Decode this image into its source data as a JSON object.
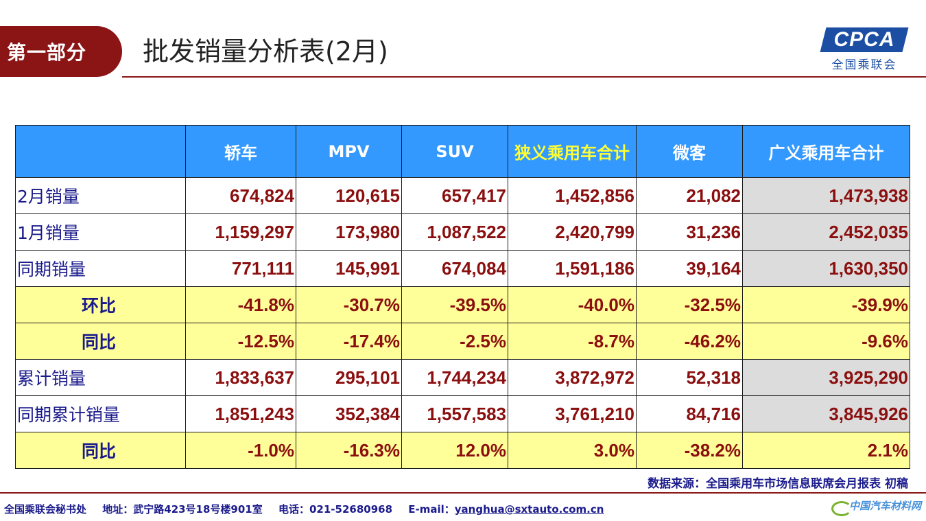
{
  "header": {
    "section_label": "第一部分",
    "title": "批发销量分析表(2月)",
    "logo_text": "CPCA",
    "logo_subtitle": "全国乘联会"
  },
  "table": {
    "columns": [
      "",
      "轿车",
      "MPV",
      "SUV",
      "狭义乘用车合计",
      "微客",
      "广义乘用车合计"
    ],
    "rows": [
      {
        "label": "2月销量",
        "values": [
          "674,824",
          "120,615",
          "657,417",
          "1,452,856",
          "21,082",
          "1,473,938"
        ]
      },
      {
        "label": "1月销量",
        "values": [
          "1,159,297",
          "173,980",
          "1,087,522",
          "2,420,799",
          "31,236",
          "2,452,035"
        ]
      },
      {
        "label": "同期销量",
        "values": [
          "771,111",
          "145,991",
          "674,084",
          "1,591,186",
          "39,164",
          "1,630,350"
        ]
      },
      {
        "label": "环比",
        "values": [
          "-41.8%",
          "-30.7%",
          "-39.5%",
          "-40.0%",
          "-32.5%",
          "-39.9%"
        ]
      },
      {
        "label": "同比",
        "values": [
          "-12.5%",
          "-17.4%",
          "-2.5%",
          "-8.7%",
          "-46.2%",
          "-9.6%"
        ]
      },
      {
        "label": "累计销量",
        "values": [
          "1,833,637",
          "295,101",
          "1,744,234",
          "3,872,972",
          "52,318",
          "3,925,290"
        ]
      },
      {
        "label": "同期累计销量",
        "values": [
          "1,851,243",
          "352,384",
          "1,557,583",
          "3,761,210",
          "84,716",
          "3,845,926"
        ]
      },
      {
        "label": "同比",
        "values": [
          "-1.0%",
          "-16.3%",
          "12.0%",
          "3.0%",
          "-38.2%",
          "2.1%"
        ]
      }
    ]
  },
  "source_note": "数据来源：全国乘用车市场信息联席会月报表 初稿",
  "footer": {
    "org": "全国乘联会秘书处",
    "address": "地址：武宁路423号18号楼901室",
    "phone": "电话：021-52680968",
    "email_label": "E-mail：",
    "email": "yanghua@sxtauto.com.cn"
  },
  "watermark_text": "中国汽车材料网",
  "colors": {
    "brand_red": "#8b1414",
    "header_blue": "#3399ff",
    "ratio_row_yellow": "#ffff99",
    "total_col_gray": "#dcdcdc",
    "value_red": "#8b0f0f",
    "label_navy": "#1a1a8c",
    "highlight_header_text": "#ffff33"
  }
}
